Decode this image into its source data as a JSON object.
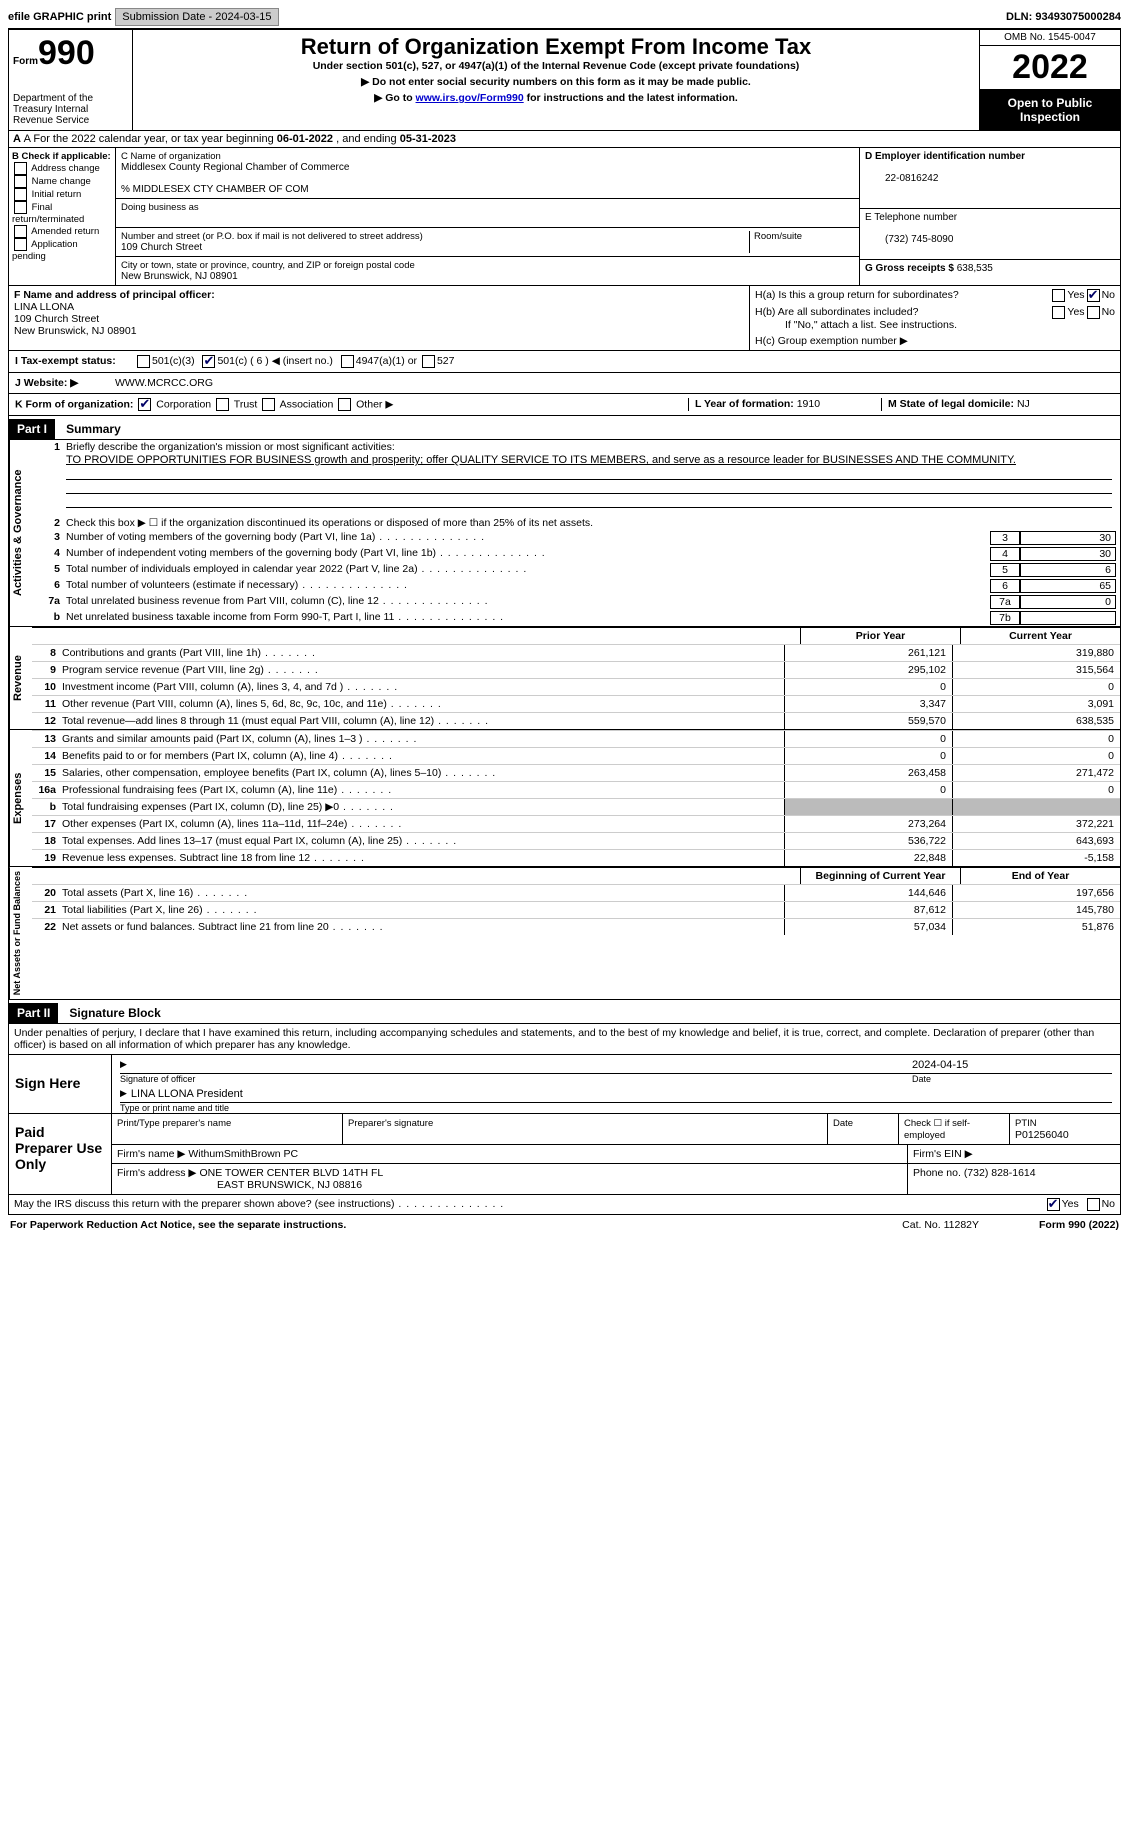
{
  "topbar": {
    "efile": "efile GRAPHIC print",
    "sub_label": "Submission Date - 2024-03-15",
    "dln_label": "DLN: 93493075000284"
  },
  "header": {
    "form_word": "Form",
    "form_num": "990",
    "title": "Return of Organization Exempt From Income Tax",
    "sub1": "Under section 501(c), 527, or 4947(a)(1) of the Internal Revenue Code (except private foundations)",
    "sub2": "▶ Do not enter social security numbers on this form as it may be made public.",
    "sub3_a": "▶ Go to ",
    "sub3_link": "www.irs.gov/Form990",
    "sub3_b": " for instructions and the latest information.",
    "dept": "Department of the Treasury Internal Revenue Service",
    "omb": "OMB No. 1545-0047",
    "year": "2022",
    "open": "Open to Public Inspection"
  },
  "rowA": {
    "text_a": "A For the 2022 calendar year, or tax year beginning ",
    "begin": "06-01-2022",
    "text_b": " , and ending ",
    "end": "05-31-2023"
  },
  "b": {
    "label": "B Check if applicable:",
    "items": [
      "Address change",
      "Name change",
      "Initial return",
      "Final return/terminated",
      "Amended return",
      "Application pending"
    ]
  },
  "c": {
    "name_label": "C Name of organization",
    "name": "Middlesex County Regional Chamber of Commerce",
    "care_of": "% MIDDLESEX CTY CHAMBER OF COM",
    "dba_label": "Doing business as",
    "street_label": "Number and street (or P.O. box if mail is not delivered to street address)",
    "room_label": "Room/suite",
    "street": "109 Church Street",
    "city_label": "City or town, state or province, country, and ZIP or foreign postal code",
    "city": "New Brunswick, NJ  08901"
  },
  "d": {
    "ein_label": "D Employer identification number",
    "ein": "22-0816242",
    "phone_label": "E Telephone number",
    "phone": "(732) 745-8090",
    "gross_label": "G Gross receipts $",
    "gross": "638,535"
  },
  "fh": {
    "f_label": "F Name and address of principal officer:",
    "f_name": "LINA LLONA",
    "f_addr1": "109 Church Street",
    "f_addr2": "New Brunswick, NJ  08901",
    "ha": "H(a)  Is this a group return for subordinates?",
    "hb": "H(b)  Are all subordinates included?",
    "hb_note": "If \"No,\" attach a list. See instructions.",
    "hc": "H(c)  Group exemption number ▶",
    "yes": "Yes",
    "no": "No"
  },
  "i": {
    "label": "I  Tax-exempt status:",
    "c3": "501(c)(3)",
    "c": "501(c) ( 6 ) ◀ (insert no.)",
    "a1": "4947(a)(1) or",
    "a2": "527"
  },
  "j": {
    "label": "J  Website: ▶",
    "value": "WWW.MCRCC.ORG"
  },
  "k": {
    "label": "K Form of organization:",
    "corp": "Corporation",
    "trust": "Trust",
    "assoc": "Association",
    "other": "Other ▶"
  },
  "l": {
    "label": "L Year of formation:",
    "value": "1910"
  },
  "m": {
    "label": "M State of legal domicile:",
    "value": "NJ"
  },
  "part1": {
    "tag": "Part I",
    "title": "Summary",
    "q1": "Briefly describe the organization's mission or most significant activities:",
    "mission": "TO PROVIDE OPPORTUNITIES FOR BUSINESS growth and prosperity; offer QUALITY SERVICE TO ITS MEMBERS, and serve as a resource leader for BUSINESSES AND THE COMMUNITY.",
    "q2": "Check this box ▶ ☐ if the organization discontinued its operations or disposed of more than 25% of its net assets.",
    "lines_ag": [
      {
        "n": "3",
        "d": "Number of voting members of the governing body (Part VI, line 1a)",
        "box": "3",
        "v": "30"
      },
      {
        "n": "4",
        "d": "Number of independent voting members of the governing body (Part VI, line 1b)",
        "box": "4",
        "v": "30"
      },
      {
        "n": "5",
        "d": "Total number of individuals employed in calendar year 2022 (Part V, line 2a)",
        "box": "5",
        "v": "6"
      },
      {
        "n": "6",
        "d": "Total number of volunteers (estimate if necessary)",
        "box": "6",
        "v": "65"
      },
      {
        "n": "7a",
        "d": "Total unrelated business revenue from Part VIII, column (C), line 12",
        "box": "7a",
        "v": "0"
      },
      {
        "n": "b",
        "d": "Net unrelated business taxable income from Form 990-T, Part I, line 11",
        "box": "7b",
        "v": ""
      }
    ],
    "prior": "Prior Year",
    "current": "Current Year",
    "rev": [
      {
        "n": "8",
        "d": "Contributions and grants (Part VIII, line 1h)",
        "p": "261,121",
        "c": "319,880"
      },
      {
        "n": "9",
        "d": "Program service revenue (Part VIII, line 2g)",
        "p": "295,102",
        "c": "315,564"
      },
      {
        "n": "10",
        "d": "Investment income (Part VIII, column (A), lines 3, 4, and 7d )",
        "p": "0",
        "c": "0"
      },
      {
        "n": "11",
        "d": "Other revenue (Part VIII, column (A), lines 5, 6d, 8c, 9c, 10c, and 11e)",
        "p": "3,347",
        "c": "3,091"
      },
      {
        "n": "12",
        "d": "Total revenue—add lines 8 through 11 (must equal Part VIII, column (A), line 12)",
        "p": "559,570",
        "c": "638,535"
      }
    ],
    "exp": [
      {
        "n": "13",
        "d": "Grants and similar amounts paid (Part IX, column (A), lines 1–3 )",
        "p": "0",
        "c": "0"
      },
      {
        "n": "14",
        "d": "Benefits paid to or for members (Part IX, column (A), line 4)",
        "p": "0",
        "c": "0"
      },
      {
        "n": "15",
        "d": "Salaries, other compensation, employee benefits (Part IX, column (A), lines 5–10)",
        "p": "263,458",
        "c": "271,472"
      },
      {
        "n": "16a",
        "d": "Professional fundraising fees (Part IX, column (A), line 11e)",
        "p": "0",
        "c": "0"
      },
      {
        "n": "b",
        "d": "Total fundraising expenses (Part IX, column (D), line 25) ▶0",
        "p": "gray",
        "c": "gray"
      },
      {
        "n": "17",
        "d": "Other expenses (Part IX, column (A), lines 11a–11d, 11f–24e)",
        "p": "273,264",
        "c": "372,221"
      },
      {
        "n": "18",
        "d": "Total expenses. Add lines 13–17 (must equal Part IX, column (A), line 25)",
        "p": "536,722",
        "c": "643,693"
      },
      {
        "n": "19",
        "d": "Revenue less expenses. Subtract line 18 from line 12",
        "p": "22,848",
        "c": "-5,158"
      }
    ],
    "begin": "Beginning of Current Year",
    "end": "End of Year",
    "net": [
      {
        "n": "20",
        "d": "Total assets (Part X, line 16)",
        "p": "144,646",
        "c": "197,656"
      },
      {
        "n": "21",
        "d": "Total liabilities (Part X, line 26)",
        "p": "87,612",
        "c": "145,780"
      },
      {
        "n": "22",
        "d": "Net assets or fund balances. Subtract line 21 from line 20",
        "p": "57,034",
        "c": "51,876"
      }
    ],
    "tab_ag": "Activities & Governance",
    "tab_rev": "Revenue",
    "tab_exp": "Expenses",
    "tab_net": "Net Assets or Fund Balances"
  },
  "part2": {
    "tag": "Part II",
    "title": "Signature Block",
    "decl": "Under penalties of perjury, I declare that I have examined this return, including accompanying schedules and statements, and to the best of my knowledge and belief, it is true, correct, and complete. Declaration of preparer (other than officer) is based on all information of which preparer has any knowledge.",
    "sign_here": "Sign Here",
    "sig_officer": "Signature of officer",
    "sig_date": "2024-04-15",
    "sig_date_l": "Date",
    "officer_name": "LINA LLONA  President",
    "type_name": "Type or print name and title",
    "paid": "Paid Preparer Use Only",
    "pt_name": "Print/Type preparer's name",
    "pt_sig": "Preparer's signature",
    "pt_date": "Date",
    "pt_check": "Check ☐ if self-employed",
    "ptin_l": "PTIN",
    "ptin": "P01256040",
    "firm_name_l": "Firm's name   ▶",
    "firm_name": "WithumSmithBrown PC",
    "firm_ein_l": "Firm's EIN ▶",
    "firm_addr_l": "Firm's address ▶",
    "firm_addr1": "ONE TOWER CENTER BLVD 14TH FL",
    "firm_addr2": "EAST BRUNSWICK, NJ  08816",
    "firm_phone_l": "Phone no.",
    "firm_phone": "(732) 828-1614",
    "may_irs": "May the IRS discuss this return with the preparer shown above? (see instructions)"
  },
  "footer": {
    "pra": "For Paperwork Reduction Act Notice, see the separate instructions.",
    "cat": "Cat. No. 11282Y",
    "form": "Form 990 (2022)"
  }
}
